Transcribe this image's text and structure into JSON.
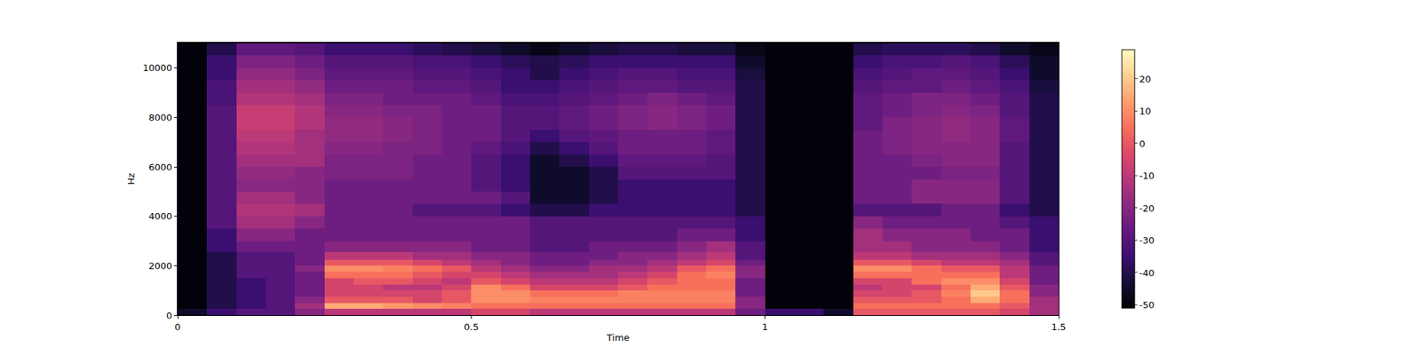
{
  "chart_data": {
    "type": "heatmap",
    "x_label": "Time",
    "y_label": "Hz",
    "xlim": [
      0,
      1.5
    ],
    "xticks": [
      0,
      0.5,
      1,
      1.5
    ],
    "ylim": [
      0,
      11025
    ],
    "yticks": [
      0,
      2000,
      4000,
      6000,
      8000,
      10000
    ],
    "colorbar_range": [
      -51,
      29
    ],
    "colorbar_ticks": [
      -50,
      -40,
      -30,
      -20,
      -10,
      0,
      10,
      20
    ],
    "x": [
      0.025,
      0.075,
      0.125,
      0.175,
      0.225,
      0.275,
      0.325,
      0.375,
      0.425,
      0.475,
      0.525,
      0.575,
      0.625,
      0.675,
      0.725,
      0.775,
      0.825,
      0.875,
      0.925,
      0.975,
      1.025,
      1.075,
      1.125,
      1.175,
      1.225,
      1.275,
      1.325,
      1.375,
      1.425,
      1.475
    ],
    "y": [
      125,
      375,
      625,
      875,
      1125,
      1375,
      1625,
      1875,
      2125,
      2375,
      2750,
      3250,
      3750,
      4250,
      4750,
      5250,
      5750,
      6250,
      6750,
      7250,
      7750,
      8250,
      8750,
      9250,
      9750,
      10250,
      10750
    ],
    "z": [
      [
        -45,
        -35,
        -30,
        -30,
        -20,
        -10,
        -10,
        -10,
        -10,
        -10,
        -5,
        -5,
        -10,
        -10,
        -10,
        -10,
        -10,
        -10,
        -10,
        -25,
        -35,
        -35,
        -45,
        0,
        0,
        0,
        0,
        0,
        -5,
        -15
      ],
      [
        -50,
        -40,
        -35,
        -30,
        -15,
        15,
        15,
        12,
        10,
        8,
        5,
        5,
        5,
        5,
        5,
        5,
        5,
        5,
        5,
        -20,
        -50,
        -50,
        -50,
        5,
        5,
        5,
        5,
        5,
        0,
        -15
      ],
      [
        -50,
        -40,
        -35,
        -30,
        -20,
        0,
        0,
        0,
        -5,
        0,
        10,
        10,
        8,
        8,
        8,
        8,
        8,
        8,
        8,
        -20,
        -50,
        -50,
        -50,
        0,
        0,
        0,
        5,
        15,
        5,
        -15
      ],
      [
        -50,
        -40,
        -35,
        -30,
        -25,
        -5,
        -5,
        -5,
        -5,
        0,
        10,
        10,
        5,
        5,
        5,
        8,
        8,
        8,
        8,
        -25,
        -50,
        -50,
        -50,
        -5,
        -5,
        0,
        8,
        20,
        5,
        -20
      ],
      [
        -50,
        -40,
        -35,
        -30,
        -25,
        -5,
        -5,
        -10,
        -10,
        -5,
        10,
        5,
        -5,
        -5,
        -5,
        0,
        5,
        5,
        5,
        -25,
        -50,
        -50,
        -50,
        -10,
        -5,
        -5,
        5,
        15,
        0,
        -20
      ],
      [
        -50,
        -40,
        -35,
        -30,
        -25,
        -5,
        0,
        0,
        -5,
        -10,
        0,
        -5,
        -10,
        -10,
        -10,
        -5,
        0,
        5,
        5,
        -25,
        -50,
        -50,
        -50,
        -5,
        -5,
        5,
        10,
        10,
        -5,
        -25
      ],
      [
        -50,
        -40,
        -30,
        -30,
        -25,
        5,
        5,
        5,
        0,
        -5,
        -5,
        -10,
        -15,
        -15,
        -15,
        -10,
        -5,
        5,
        8,
        -20,
        -50,
        -50,
        -50,
        5,
        5,
        5,
        5,
        5,
        -10,
        -25
      ],
      [
        -50,
        -40,
        -30,
        -30,
        -20,
        10,
        10,
        8,
        5,
        0,
        -10,
        -15,
        -20,
        -20,
        -15,
        -15,
        -10,
        0,
        5,
        -20,
        -50,
        -50,
        -50,
        10,
        10,
        5,
        0,
        0,
        -10,
        -25
      ],
      [
        -50,
        -40,
        -30,
        -30,
        -25,
        0,
        0,
        0,
        -5,
        -10,
        -15,
        -20,
        -25,
        -25,
        -20,
        -20,
        -15,
        -10,
        -5,
        -25,
        -50,
        -50,
        -50,
        0,
        0,
        -5,
        -10,
        -10,
        -15,
        -30
      ],
      [
        -50,
        -40,
        -30,
        -30,
        -25,
        -10,
        -10,
        -10,
        -15,
        -15,
        -20,
        -20,
        -25,
        -25,
        -25,
        -20,
        -20,
        -15,
        -10,
        -30,
        -50,
        -50,
        -50,
        -10,
        -10,
        -15,
        -15,
        -15,
        -20,
        -30
      ],
      [
        -50,
        -35,
        -25,
        -25,
        -25,
        -20,
        -20,
        -20,
        -20,
        -20,
        -25,
        -25,
        -30,
        -30,
        -25,
        -25,
        -25,
        -20,
        -15,
        -30,
        -50,
        -50,
        -50,
        -15,
        -15,
        -20,
        -20,
        -20,
        -25,
        -35
      ],
      [
        -50,
        -35,
        -20,
        -20,
        -25,
        -25,
        -25,
        -25,
        -25,
        -25,
        -25,
        -25,
        -30,
        -30,
        -30,
        -30,
        -30,
        -25,
        -25,
        -35,
        -50,
        -50,
        -50,
        -15,
        -20,
        -20,
        -20,
        -25,
        -25,
        -35
      ],
      [
        -50,
        -30,
        -15,
        -15,
        -20,
        -25,
        -25,
        -25,
        -25,
        -25,
        -25,
        -25,
        -30,
        -30,
        -30,
        -30,
        -30,
        -30,
        -30,
        -35,
        -50,
        -50,
        -50,
        -20,
        -25,
        -25,
        -25,
        -25,
        -30,
        -35
      ],
      [
        -50,
        -30,
        -12,
        -12,
        -15,
        -25,
        -25,
        -25,
        -30,
        -30,
        -30,
        -35,
        -40,
        -40,
        -35,
        -35,
        -35,
        -35,
        -35,
        -40,
        -50,
        -50,
        -50,
        -30,
        -30,
        -30,
        -25,
        -25,
        -35,
        -40
      ],
      [
        -50,
        -30,
        -15,
        -15,
        -20,
        -25,
        -25,
        -25,
        -25,
        -25,
        -25,
        -30,
        -45,
        -45,
        -40,
        -35,
        -35,
        -35,
        -35,
        -40,
        -50,
        -50,
        -50,
        -25,
        -25,
        -20,
        -20,
        -20,
        -30,
        -40
      ],
      [
        -50,
        -30,
        -20,
        -20,
        -20,
        -25,
        -25,
        -25,
        -25,
        -25,
        -30,
        -35,
        -45,
        -45,
        -40,
        -35,
        -35,
        -35,
        -35,
        -40,
        -50,
        -50,
        -50,
        -25,
        -25,
        -20,
        -20,
        -20,
        -30,
        -40
      ],
      [
        -50,
        -30,
        -18,
        -18,
        -20,
        -22,
        -22,
        -22,
        -25,
        -25,
        -30,
        -35,
        -45,
        -45,
        -40,
        -30,
        -30,
        -30,
        -30,
        -40,
        -50,
        -50,
        -50,
        -25,
        -25,
        -25,
        -22,
        -22,
        -30,
        -40
      ],
      [
        -50,
        -30,
        -15,
        -15,
        -15,
        -22,
        -22,
        -22,
        -25,
        -25,
        -30,
        -35,
        -45,
        -40,
        -35,
        -28,
        -28,
        -28,
        -30,
        -40,
        -50,
        -50,
        -50,
        -25,
        -25,
        -22,
        -20,
        -20,
        -30,
        -40
      ],
      [
        -50,
        -30,
        -12,
        -12,
        -15,
        -20,
        -20,
        -22,
        -22,
        -25,
        -28,
        -32,
        -40,
        -35,
        -30,
        -25,
        -25,
        -25,
        -28,
        -40,
        -50,
        -50,
        -50,
        -25,
        -22,
        -20,
        -20,
        -20,
        -30,
        -40
      ],
      [
        -50,
        -30,
        -10,
        -10,
        -15,
        -18,
        -18,
        -20,
        -22,
        -25,
        -25,
        -30,
        -35,
        -30,
        -28,
        -25,
        -25,
        -25,
        -28,
        -40,
        -50,
        -50,
        -50,
        -25,
        -22,
        -20,
        -18,
        -20,
        -28,
        -40
      ],
      [
        -50,
        -30,
        -8,
        -8,
        -12,
        -18,
        -18,
        -20,
        -22,
        -25,
        -25,
        -30,
        -30,
        -28,
        -25,
        -22,
        -20,
        -22,
        -25,
        -40,
        -50,
        -50,
        -50,
        -28,
        -22,
        -20,
        -18,
        -20,
        -28,
        -40
      ],
      [
        -50,
        -30,
        -8,
        -8,
        -12,
        -20,
        -20,
        -22,
        -22,
        -25,
        -25,
        -30,
        -30,
        -28,
        -25,
        -22,
        -20,
        -22,
        -25,
        -40,
        -50,
        -50,
        -50,
        -28,
        -25,
        -22,
        -20,
        -22,
        -30,
        -40
      ],
      [
        -50,
        -32,
        -12,
        -12,
        -15,
        -22,
        -22,
        -25,
        -25,
        -25,
        -28,
        -32,
        -32,
        -30,
        -28,
        -25,
        -22,
        -25,
        -28,
        -40,
        -50,
        -50,
        -50,
        -28,
        -25,
        -22,
        -22,
        -25,
        -30,
        -40
      ],
      [
        -50,
        -32,
        -15,
        -15,
        -18,
        -25,
        -25,
        -25,
        -28,
        -28,
        -30,
        -35,
        -35,
        -32,
        -30,
        -28,
        -28,
        -30,
        -30,
        -40,
        -50,
        -50,
        -50,
        -30,
        -28,
        -28,
        -25,
        -28,
        -32,
        -42
      ],
      [
        -50,
        -35,
        -18,
        -18,
        -22,
        -28,
        -28,
        -28,
        -30,
        -30,
        -32,
        -35,
        -40,
        -35,
        -32,
        -30,
        -30,
        -32,
        -32,
        -42,
        -50,
        -50,
        -50,
        -32,
        -30,
        -28,
        -28,
        -30,
        -35,
        -45
      ],
      [
        -50,
        -35,
        -22,
        -22,
        -25,
        -30,
        -30,
        -30,
        -32,
        -32,
        -35,
        -38,
        -40,
        -38,
        -35,
        -35,
        -35,
        -35,
        -35,
        -45,
        -50,
        -50,
        -50,
        -35,
        -32,
        -32,
        -30,
        -32,
        -38,
        -45
      ],
      [
        -50,
        -40,
        -28,
        -28,
        -30,
        -35,
        -35,
        -35,
        -38,
        -40,
        -42,
        -45,
        -48,
        -45,
        -42,
        -40,
        -40,
        -42,
        -42,
        -48,
        -50,
        -50,
        -50,
        -40,
        -38,
        -38,
        -38,
        -40,
        -45,
        -48
      ]
    ]
  }
}
